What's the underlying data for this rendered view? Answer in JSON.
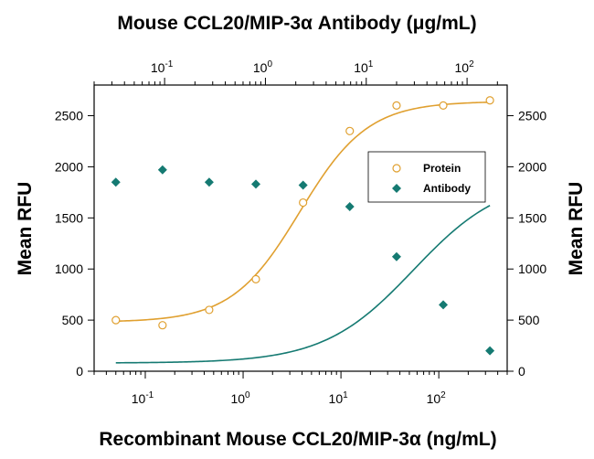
{
  "chart_data": {
    "type": "scatter",
    "title_top": "Mouse CCL20/MIP-3α Antibody (μg/mL)",
    "xlabel": "Recombinant Mouse CCL20/MIP-3α (ng/mL)",
    "ylabel_left": "Mean RFU",
    "ylabel_right": "Mean RFU",
    "x_scale": "log",
    "xlim": [
      0.03,
      500
    ],
    "ylim": [
      0,
      2800
    ],
    "y_ticks": [
      "0",
      "500",
      "1000",
      "1500",
      "2000",
      "2500"
    ],
    "x_tick_labels": [
      {
        "value": 0.1,
        "base": "10",
        "exp": "-1"
      },
      {
        "value": 1,
        "base": "10",
        "exp": "0"
      },
      {
        "value": 10,
        "base": "10",
        "exp": "1"
      },
      {
        "value": 100,
        "base": "10",
        "exp": "2"
      }
    ],
    "top_axis": {
      "xlim": [
        0.02,
        250
      ],
      "tick_labels": [
        {
          "value": 0.1,
          "base": "10",
          "exp": "-1"
        },
        {
          "value": 1,
          "base": "10",
          "exp": "0"
        },
        {
          "value": 10,
          "base": "10",
          "exp": "1"
        },
        {
          "value": 100,
          "base": "10",
          "exp": "2"
        }
      ]
    },
    "legend_position": "upper-right",
    "series": [
      {
        "name": "Protein",
        "color": "#e0a030",
        "marker": "open-circle",
        "x": [
          0.05,
          0.15,
          0.45,
          1.35,
          4.1,
          12.3,
          37,
          111,
          333
        ],
        "y": [
          500,
          450,
          600,
          900,
          1650,
          2350,
          2600,
          2600,
          2650
        ]
      },
      {
        "name": "Antibody",
        "color": "#157a72",
        "marker": "filled-diamond",
        "x": [
          0.05,
          0.15,
          0.45,
          1.35,
          4.1,
          12.3,
          37,
          111,
          333
        ],
        "y": [
          1850,
          1970,
          1850,
          1830,
          1820,
          1610,
          1120,
          650,
          200
        ]
      }
    ],
    "fits": [
      {
        "series": "Protein",
        "bottom": 480,
        "top": 2640,
        "ec50": 3.8,
        "hill": 1.25,
        "color": "#e0a030"
      },
      {
        "series": "Antibody",
        "bottom": 80,
        "top": 1900,
        "ec50": 55,
        "hill": 0.95,
        "color": "#157a72"
      }
    ]
  }
}
